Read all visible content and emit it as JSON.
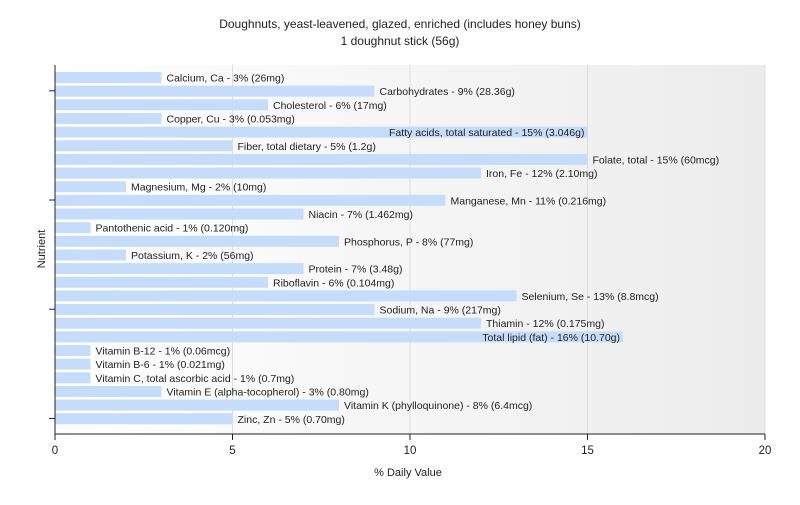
{
  "chart_data": {
    "type": "bar",
    "orientation": "horizontal",
    "title": "Doughnuts, yeast-leavened, glazed, enriched (includes honey buns)",
    "subtitle": "1 doughnut stick (56g)",
    "xlabel": "% Daily Value",
    "ylabel": "Nutrient",
    "xlim": [
      0,
      20
    ],
    "xticks": [
      "0",
      "5",
      "10",
      "15",
      "20"
    ],
    "grid": true,
    "bar_color": "#c6dcfb",
    "categories": [
      "Calcium, Ca",
      "Carbohydrates",
      "Cholesterol",
      "Copper, Cu",
      "Fatty acids, total saturated",
      "Fiber, total dietary",
      "Folate, total",
      "Iron, Fe",
      "Magnesium, Mg",
      "Manganese, Mn",
      "Niacin",
      "Pantothenic acid",
      "Phosphorus, P",
      "Potassium, K",
      "Protein",
      "Riboflavin",
      "Selenium, Se",
      "Sodium, Na",
      "Thiamin",
      "Total lipid (fat)",
      "Vitamin B-12",
      "Vitamin B-6",
      "Vitamin C, total ascorbic acid",
      "Vitamin E (alpha-tocopherol)",
      "Vitamin K (phylloquinone)",
      "Zinc, Zn"
    ],
    "values": [
      3,
      9,
      6,
      3,
      15,
      5,
      15,
      12,
      2,
      11,
      7,
      1,
      8,
      2,
      7,
      6,
      13,
      9,
      12,
      16,
      1,
      1,
      1,
      3,
      8,
      5
    ],
    "labels": [
      "Calcium, Ca - 3% (26mg)",
      "Carbohydrates - 9% (28.36g)",
      "Cholesterol - 6% (17mg)",
      "Copper, Cu - 3% (0.053mg)",
      "Fatty acids, total saturated - 15% (3.046g)",
      "Fiber, total dietary - 5% (1.2g)",
      "Folate, total - 15% (60mcg)",
      "Iron, Fe - 12% (2.10mg)",
      "Magnesium, Mg - 2% (10mg)",
      "Manganese, Mn - 11% (0.216mg)",
      "Niacin - 7% (1.462mg)",
      "Pantothenic acid - 1% (0.120mg)",
      "Phosphorus, P - 8% (77mg)",
      "Potassium, K - 2% (56mg)",
      "Protein - 7% (3.48g)",
      "Riboflavin - 6% (0.104mg)",
      "Selenium, Se - 13% (8.8mcg)",
      "Sodium, Na - 9% (217mg)",
      "Thiamin - 12% (0.175mg)",
      "Total lipid (fat) - 16% (10.70g)",
      "Vitamin B-12 - 1% (0.06mcg)",
      "Vitamin B-6 - 1% (0.021mg)",
      "Vitamin C, total ascorbic acid - 1% (0.7mg)",
      "Vitamin E (alpha-tocopherol) - 3% (0.80mg)",
      "Vitamin K (phylloquinone) - 8% (6.4mcg)",
      "Zinc, Zn - 5% (0.70mg)"
    ],
    "label_inside": [
      false,
      false,
      false,
      false,
      true,
      false,
      false,
      false,
      false,
      false,
      false,
      false,
      false,
      false,
      false,
      false,
      false,
      false,
      false,
      true,
      false,
      false,
      false,
      false,
      false,
      false
    ]
  }
}
